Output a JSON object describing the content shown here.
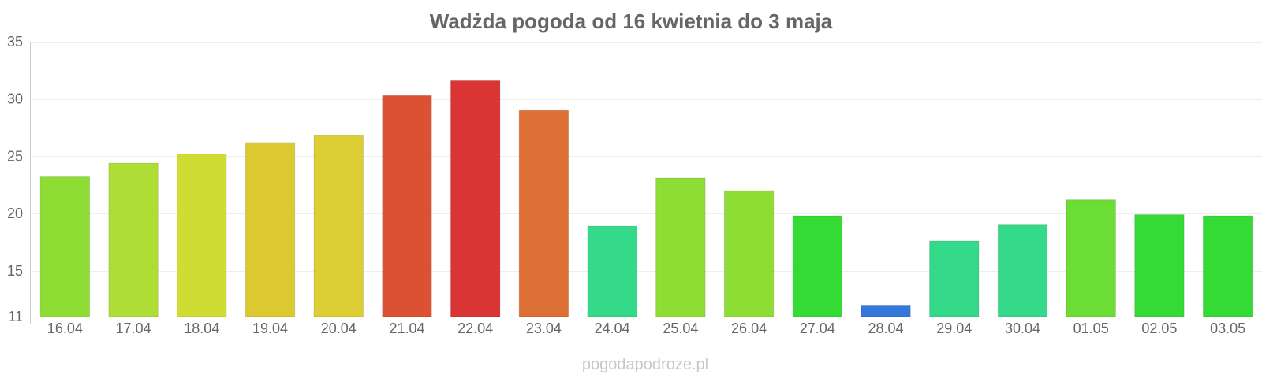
{
  "chart_data": {
    "type": "bar",
    "title": "Wadżda pogoda od 16 kwietnia do 3 maja",
    "xlabel": "",
    "ylabel": "",
    "categories": [
      "16.04",
      "17.04",
      "18.04",
      "19.04",
      "20.04",
      "21.04",
      "22.04",
      "23.04",
      "24.04",
      "25.04",
      "26.04",
      "27.04",
      "28.04",
      "29.04",
      "30.04",
      "01.05",
      "02.05",
      "03.05"
    ],
    "values": [
      23.2,
      24.4,
      25.2,
      26.2,
      26.8,
      30.3,
      31.6,
      29.0,
      18.9,
      23.1,
      22.0,
      19.8,
      12.0,
      17.6,
      19.0,
      21.2,
      19.9,
      19.8
    ],
    "colors": [
      "#8ddd35",
      "#aedd35",
      "#cfdd32",
      "#dcc932",
      "#dcce34",
      "#dc5034",
      "#db3434",
      "#dd7034",
      "#34d98a",
      "#8ddd35",
      "#8ddd35",
      "#34db34",
      "#3478dc",
      "#34d98a",
      "#34d98a",
      "#6cdd34",
      "#34db34",
      "#34db34"
    ],
    "ylim": [
      11,
      35
    ],
    "yticks": [
      11,
      15,
      20,
      25,
      30,
      35
    ],
    "grid": true,
    "legend": "none"
  },
  "watermark": "pogodapodroze.pl"
}
